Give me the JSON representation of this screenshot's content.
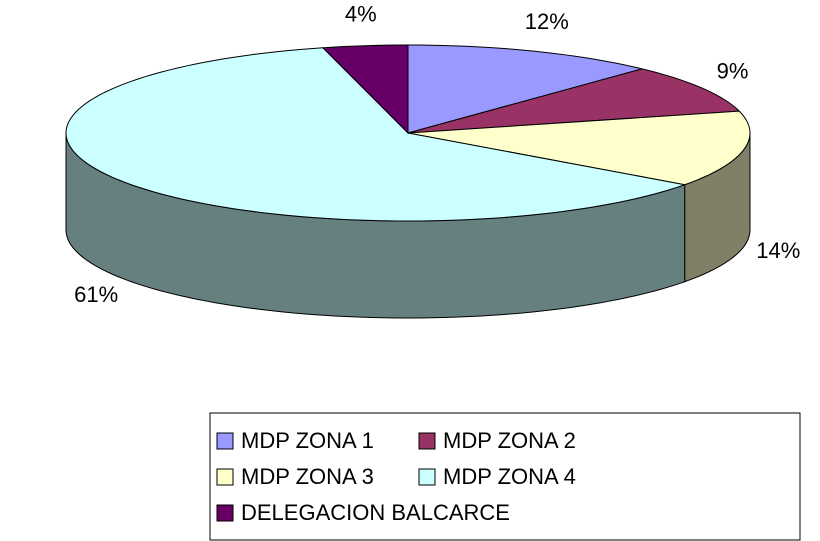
{
  "chart_data": {
    "type": "pie",
    "categories": [
      "MDP ZONA 1",
      "MDP ZONA 2",
      "MDP ZONA 3",
      "MDP ZONA 4",
      "DELEGACION BALCARCE"
    ],
    "values": [
      12,
      9,
      14,
      61,
      4
    ],
    "value_labels": [
      "12%",
      "9%",
      "14%",
      "61%",
      "4%"
    ],
    "colors": [
      "#9999ff",
      "#993366",
      "#ffffcc",
      "#ccffff",
      "#660066"
    ]
  }
}
